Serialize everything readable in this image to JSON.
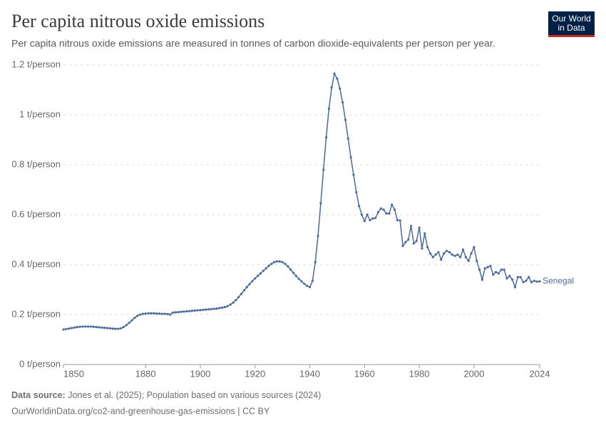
{
  "chart_data": {
    "type": "line",
    "title": "Per capita nitrous oxide emissions",
    "subtitle": "Per capita nitrous oxide emissions are measured in tonnes of carbon dioxide-equivalents per person per year.",
    "logo": [
      "Our World",
      "in Data"
    ],
    "source_label": "Data source:",
    "source": "Jones et al. (2025); Population based on various sources (2024)",
    "footer": "OurWorldinData.org/co2-and-greenhouse-gas-emissions | CC BY",
    "xlim": [
      1850,
      2024
    ],
    "xticks": [
      1850,
      1880,
      1900,
      1920,
      1940,
      1960,
      1980,
      2000,
      2024
    ],
    "ylim": [
      0,
      1.2
    ],
    "yticks": [
      {
        "value": 0,
        "label": "0 t/person"
      },
      {
        "value": 0.2,
        "label": "0.2 t/person"
      },
      {
        "value": 0.4,
        "label": "0.4 t/person"
      },
      {
        "value": 0.6,
        "label": "0.6 t/person"
      },
      {
        "value": 0.8,
        "label": "0.8 t/person"
      },
      {
        "value": 1,
        "label": "1 t/person"
      },
      {
        "value": 1.2,
        "label": "1.2 t/person"
      }
    ],
    "grid": true,
    "x": [
      1850,
      1851,
      1852,
      1853,
      1854,
      1855,
      1856,
      1857,
      1858,
      1859,
      1860,
      1861,
      1862,
      1863,
      1864,
      1865,
      1866,
      1867,
      1868,
      1869,
      1870,
      1871,
      1872,
      1873,
      1874,
      1875,
      1876,
      1877,
      1878,
      1879,
      1880,
      1881,
      1882,
      1883,
      1884,
      1885,
      1886,
      1887,
      1888,
      1889,
      1890,
      1891,
      1892,
      1893,
      1894,
      1895,
      1896,
      1897,
      1898,
      1899,
      1900,
      1901,
      1902,
      1903,
      1904,
      1905,
      1906,
      1907,
      1908,
      1909,
      1910,
      1911,
      1912,
      1913,
      1914,
      1915,
      1916,
      1917,
      1918,
      1919,
      1920,
      1921,
      1922,
      1923,
      1924,
      1925,
      1926,
      1927,
      1928,
      1929,
      1930,
      1931,
      1932,
      1933,
      1934,
      1935,
      1936,
      1937,
      1938,
      1939,
      1940,
      1941,
      1942,
      1943,
      1944,
      1945,
      1946,
      1947,
      1948,
      1949,
      1950,
      1951,
      1952,
      1953,
      1954,
      1955,
      1956,
      1957,
      1958,
      1959,
      1960,
      1961,
      1962,
      1963,
      1964,
      1965,
      1966,
      1967,
      1968,
      1969,
      1970,
      1971,
      1972,
      1973,
      1974,
      1975,
      1976,
      1977,
      1978,
      1979,
      1980,
      1981,
      1982,
      1983,
      1984,
      1985,
      1986,
      1987,
      1988,
      1989,
      1990,
      1991,
      1992,
      1993,
      1994,
      1995,
      1996,
      1997,
      1998,
      1999,
      2000,
      2001,
      2002,
      2003,
      2004,
      2005,
      2006,
      2007,
      2008,
      2009,
      2010,
      2011,
      2012,
      2013,
      2014,
      2015,
      2016,
      2017,
      2018,
      2019,
      2020,
      2021,
      2022,
      2023,
      2024
    ],
    "series": [
      {
        "name": "Senegal",
        "color": "#4c6a9c",
        "values": [
          0.14,
          0.142,
          0.144,
          0.146,
          0.148,
          0.15,
          0.151,
          0.152,
          0.152,
          0.152,
          0.152,
          0.151,
          0.15,
          0.149,
          0.148,
          0.147,
          0.146,
          0.145,
          0.144,
          0.143,
          0.143,
          0.145,
          0.15,
          0.158,
          0.167,
          0.177,
          0.187,
          0.195,
          0.2,
          0.203,
          0.204,
          0.205,
          0.205,
          0.205,
          0.204,
          0.204,
          0.203,
          0.203,
          0.202,
          0.2,
          0.208,
          0.209,
          0.21,
          0.211,
          0.212,
          0.213,
          0.214,
          0.215,
          0.216,
          0.217,
          0.218,
          0.219,
          0.22,
          0.221,
          0.222,
          0.223,
          0.224,
          0.226,
          0.228,
          0.23,
          0.234,
          0.24,
          0.248,
          0.258,
          0.27,
          0.283,
          0.297,
          0.31,
          0.322,
          0.334,
          0.345,
          0.355,
          0.365,
          0.375,
          0.385,
          0.395,
          0.403,
          0.41,
          0.413,
          0.413,
          0.41,
          0.403,
          0.393,
          0.38,
          0.367,
          0.355,
          0.343,
          0.333,
          0.323,
          0.315,
          0.31,
          0.335,
          0.41,
          0.515,
          0.645,
          0.78,
          0.91,
          1.025,
          1.11,
          1.165,
          1.145,
          1.105,
          1.05,
          0.98,
          0.905,
          0.83,
          0.76,
          0.69,
          0.635,
          0.6,
          0.575,
          0.6,
          0.578,
          0.585,
          0.587,
          0.61,
          0.625,
          0.62,
          0.605,
          0.605,
          0.64,
          0.62,
          0.578,
          0.577,
          0.475,
          0.49,
          0.5,
          0.555,
          0.485,
          0.495,
          0.548,
          0.465,
          0.525,
          0.47,
          0.445,
          0.43,
          0.44,
          0.45,
          0.42,
          0.445,
          0.455,
          0.45,
          0.44,
          0.435,
          0.44,
          0.43,
          0.46,
          0.43,
          0.415,
          0.445,
          0.47,
          0.415,
          0.38,
          0.34,
          0.385,
          0.39,
          0.395,
          0.36,
          0.37,
          0.365,
          0.38,
          0.38,
          0.345,
          0.355,
          0.34,
          0.31,
          0.35,
          0.35,
          0.33,
          0.335,
          0.35,
          0.33,
          0.335,
          0.332,
          0.333
        ]
      }
    ]
  }
}
